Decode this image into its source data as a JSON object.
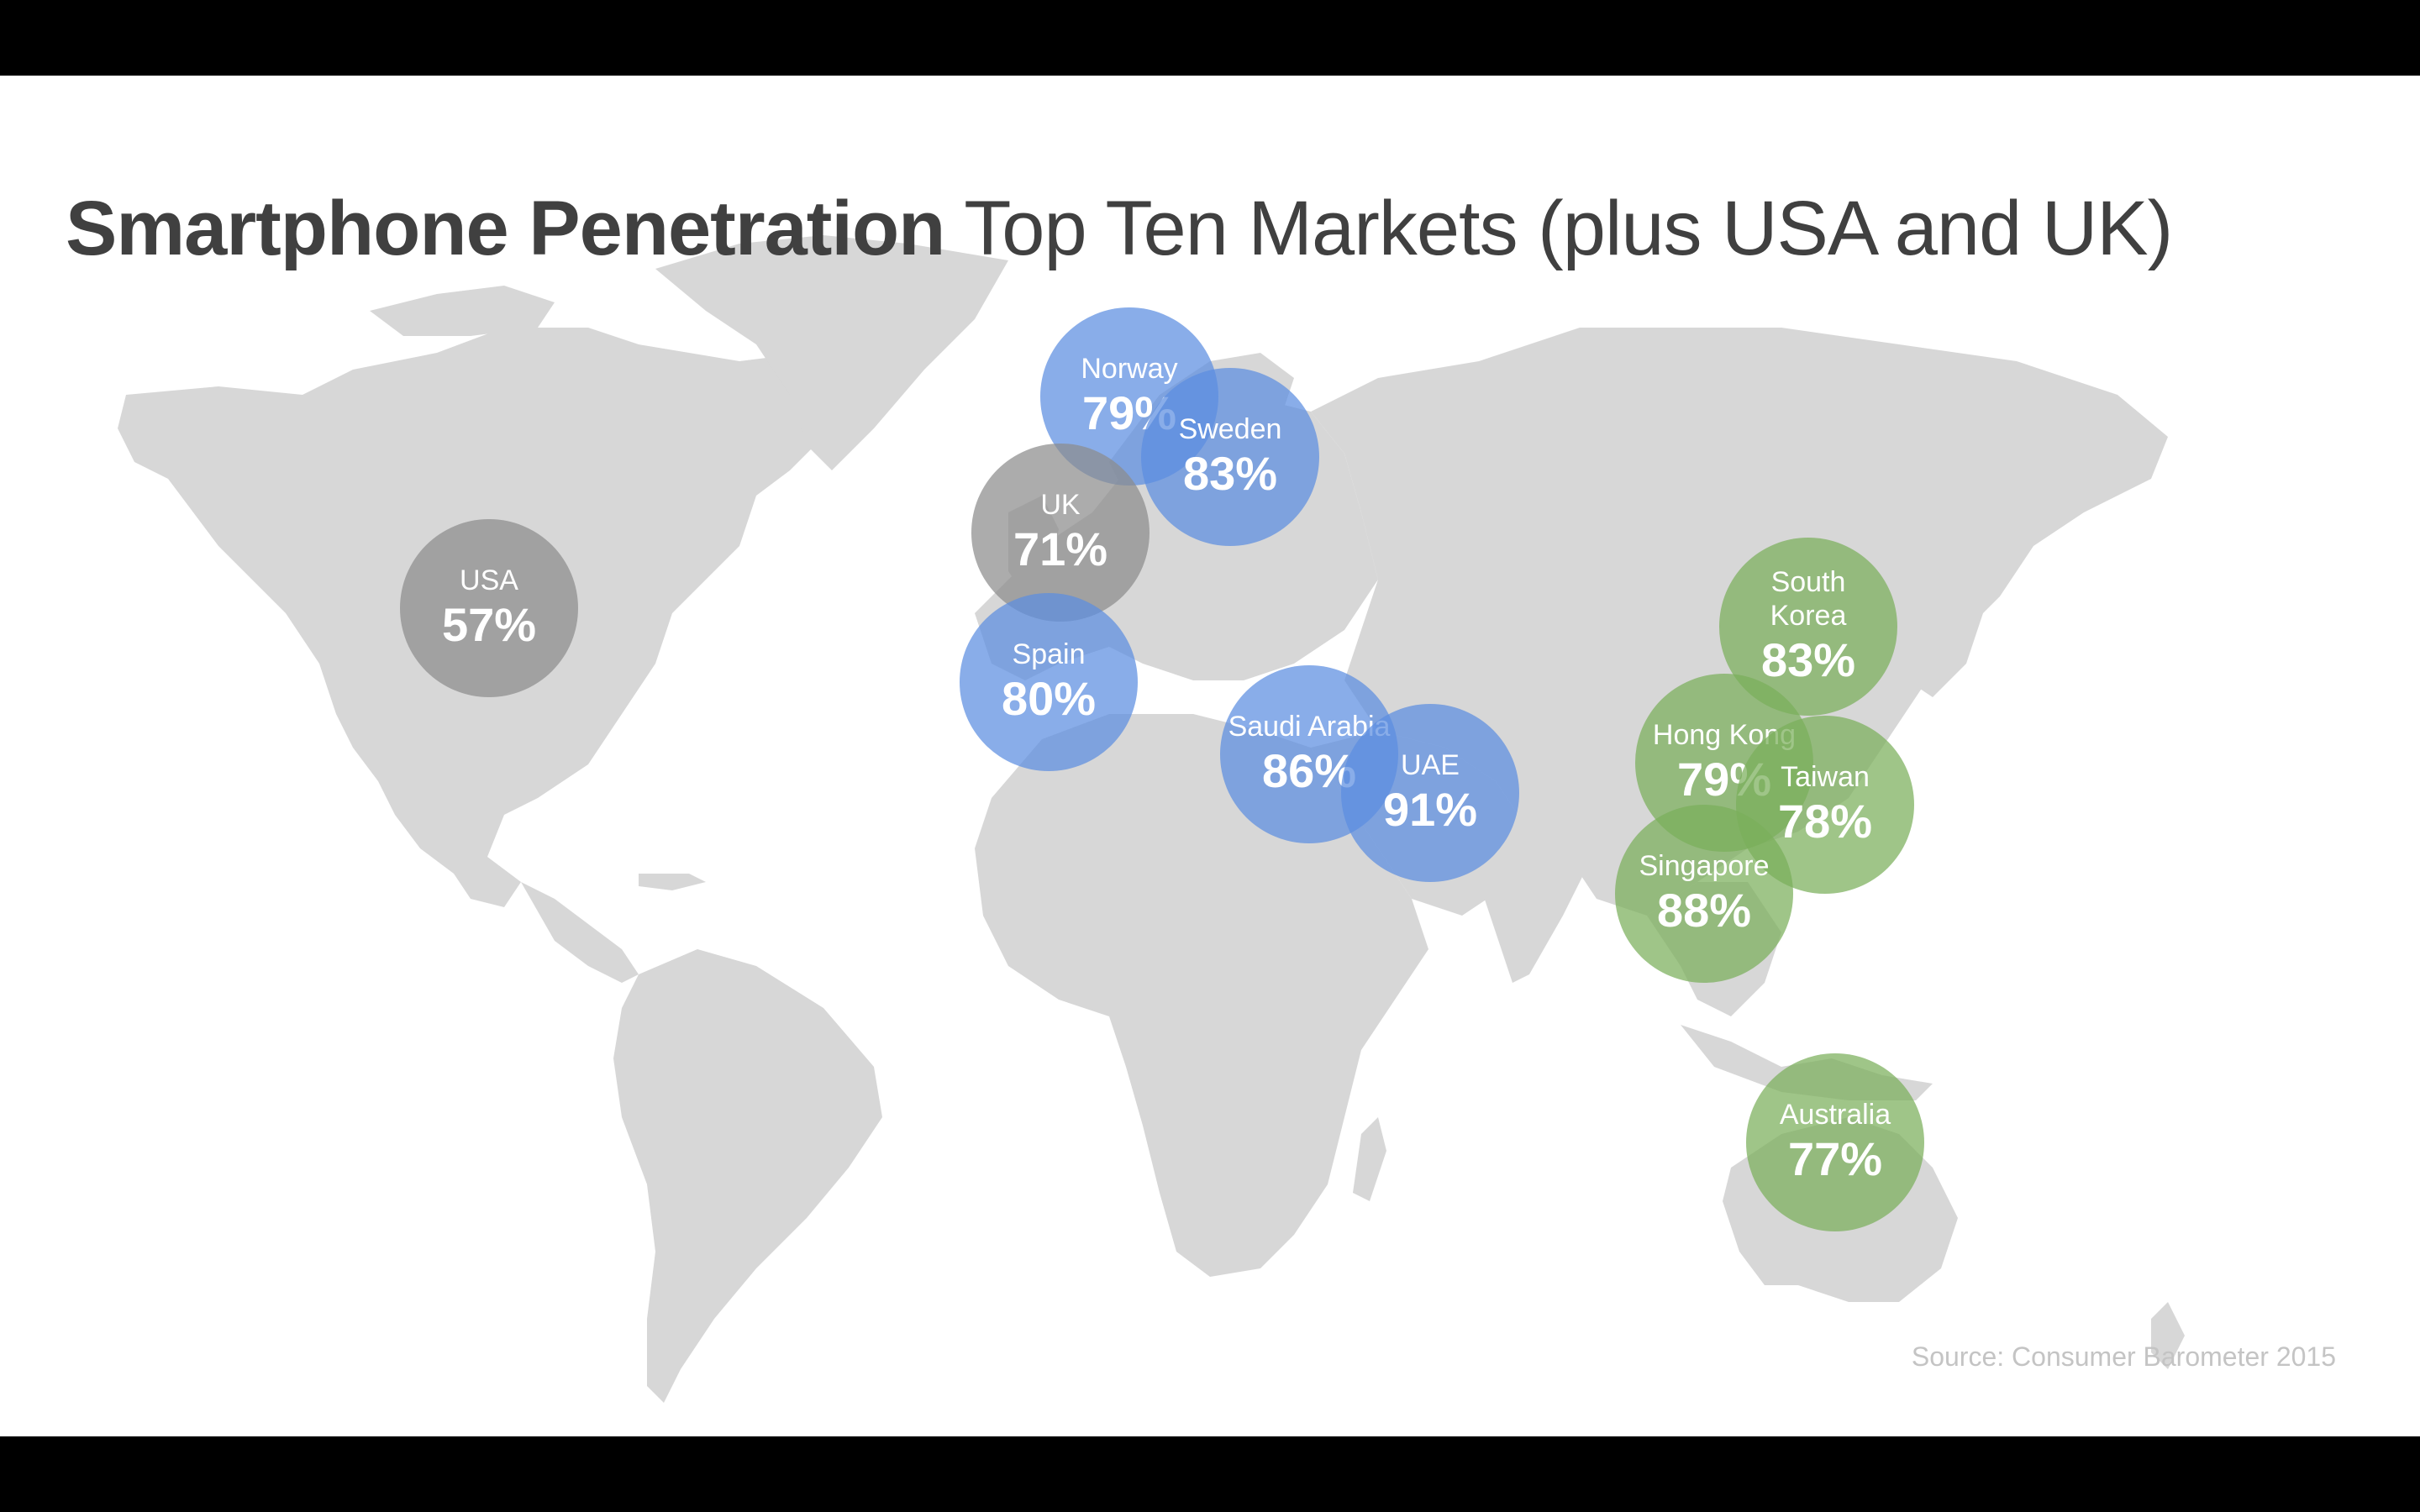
{
  "title": {
    "bold": "Smartphone Penetration",
    "light": "Top Ten Markets (plus USA and UK)"
  },
  "source": "Source: Consumer Barometer 2015",
  "colors": {
    "background": "#ffffff",
    "land": "#d7d7d7",
    "group_europe_middle_east": "#5b8ee0",
    "group_asia_pacific": "#7aae5a",
    "group_reference": "#8c8c8c"
  },
  "markers": [
    {
      "country": "USA",
      "value": "57%",
      "percent": 57,
      "group": "reference"
    },
    {
      "country": "Norway",
      "value": "79%",
      "percent": 79,
      "group": "europe_middle_east"
    },
    {
      "country": "UK",
      "value": "71%",
      "percent": 71,
      "group": "reference"
    },
    {
      "country": "Sweden",
      "value": "83%",
      "percent": 83,
      "group": "europe_middle_east"
    },
    {
      "country": "Spain",
      "value": "80%",
      "percent": 80,
      "group": "europe_middle_east"
    },
    {
      "country": "Saudi Arabia",
      "value": "86%",
      "percent": 86,
      "group": "europe_middle_east"
    },
    {
      "country": "UAE",
      "value": "91%",
      "percent": 91,
      "group": "europe_middle_east"
    },
    {
      "country": "South Korea",
      "value": "83%",
      "percent": 83,
      "group": "asia_pacific"
    },
    {
      "country": "Hong Kong",
      "value": "79%",
      "percent": 79,
      "group": "asia_pacific"
    },
    {
      "country": "Taiwan",
      "value": "78%",
      "percent": 78,
      "group": "asia_pacific"
    },
    {
      "country": "Singapore",
      "value": "88%",
      "percent": 88,
      "group": "asia_pacific"
    },
    {
      "country": "Australia",
      "value": "77%",
      "percent": 77,
      "group": "asia_pacific"
    }
  ]
}
